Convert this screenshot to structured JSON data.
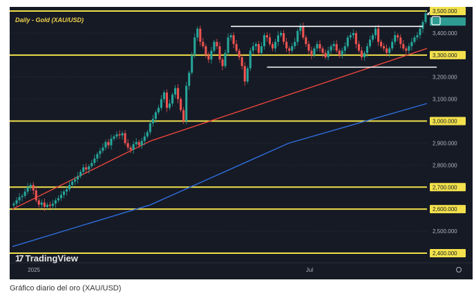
{
  "chart_data": {
    "type": "candlestick",
    "title": "Daily - Gold (XAU/USD)",
    "caption": "Gráfico diario del oro (XAU/USD)",
    "watermark": "TradingView",
    "ylim": [
      2400,
      3500
    ],
    "y_ticks": [
      {
        "value": 3500,
        "label": "3,500.000"
      },
      {
        "value": 3400,
        "label": "3,400.000"
      },
      {
        "value": 3300,
        "label": "3,300.000"
      },
      {
        "value": 3200,
        "label": "3,200.000"
      },
      {
        "value": 3100,
        "label": "3,100.000"
      },
      {
        "value": 3000,
        "label": "3,000.000"
      },
      {
        "value": 2900,
        "label": "2,900.000"
      },
      {
        "value": 2800,
        "label": "2,800.000"
      },
      {
        "value": 2700,
        "label": "2,700.000"
      },
      {
        "value": 2600,
        "label": "2,600.000"
      },
      {
        "value": 2500,
        "label": "2,500.000"
      },
      {
        "value": 2400,
        "label": "2,400.000"
      }
    ],
    "x_ticks": [
      {
        "label": "2025",
        "bar": 7
      },
      {
        "label": "Jul",
        "bar": 107
      }
    ],
    "horizontal_levels": [
      3500,
      3300,
      3000,
      2700,
      2600,
      2400
    ],
    "range_lines": [
      {
        "value": 3430,
        "from_bar": 78,
        "to_bar": 147
      },
      {
        "value": 3245,
        "from_bar": 91,
        "to_bar": 152
      }
    ],
    "closes": [
      2625,
      2640,
      2655,
      2660,
      2680,
      2700,
      2710,
      2685,
      2640,
      2620,
      2630,
      2610,
      2620,
      2615,
      2625,
      2640,
      2650,
      2665,
      2680,
      2690,
      2710,
      2725,
      2735,
      2750,
      2770,
      2790,
      2780,
      2795,
      2810,
      2830,
      2850,
      2865,
      2880,
      2905,
      2890,
      2920,
      2930,
      2940,
      2935,
      2945,
      2900,
      2880,
      2870,
      2895,
      2905,
      2890,
      2910,
      2930,
      2950,
      2990,
      3010,
      3040,
      3060,
      3100,
      3130,
      3060,
      3080,
      3120,
      3150,
      3100,
      3050,
      3000,
      3160,
      3220,
      3300,
      3380,
      3420,
      3360,
      3340,
      3300,
      3280,
      3320,
      3360,
      3340,
      3280,
      3250,
      3310,
      3380,
      3390,
      3350,
      3320,
      3290,
      3250,
      3180,
      3240,
      3320,
      3340,
      3350,
      3310,
      3340,
      3390,
      3380,
      3350,
      3330,
      3360,
      3390,
      3400,
      3360,
      3330,
      3320,
      3340,
      3360,
      3410,
      3430,
      3380,
      3350,
      3320,
      3300,
      3330,
      3350,
      3330,
      3310,
      3290,
      3320,
      3340,
      3350,
      3320,
      3300,
      3320,
      3340,
      3380,
      3390,
      3400,
      3350,
      3320,
      3290,
      3310,
      3340,
      3370,
      3390,
      3420,
      3360,
      3340,
      3330,
      3310,
      3330,
      3360,
      3390,
      3380,
      3350,
      3330,
      3320,
      3340,
      3360,
      3380,
      3390,
      3420,
      3450,
      3490
    ],
    "series": [
      {
        "values": [
          2600,
          2910,
          3120,
          3330
        ],
        "color": "#e8453c"
      },
      {
        "values": [
          2430,
          2620,
          2900,
          3080
        ],
        "color": "#2f6fde"
      }
    ],
    "last_price_marker": {
      "value": 3490,
      "color": "#2e9c92"
    }
  }
}
